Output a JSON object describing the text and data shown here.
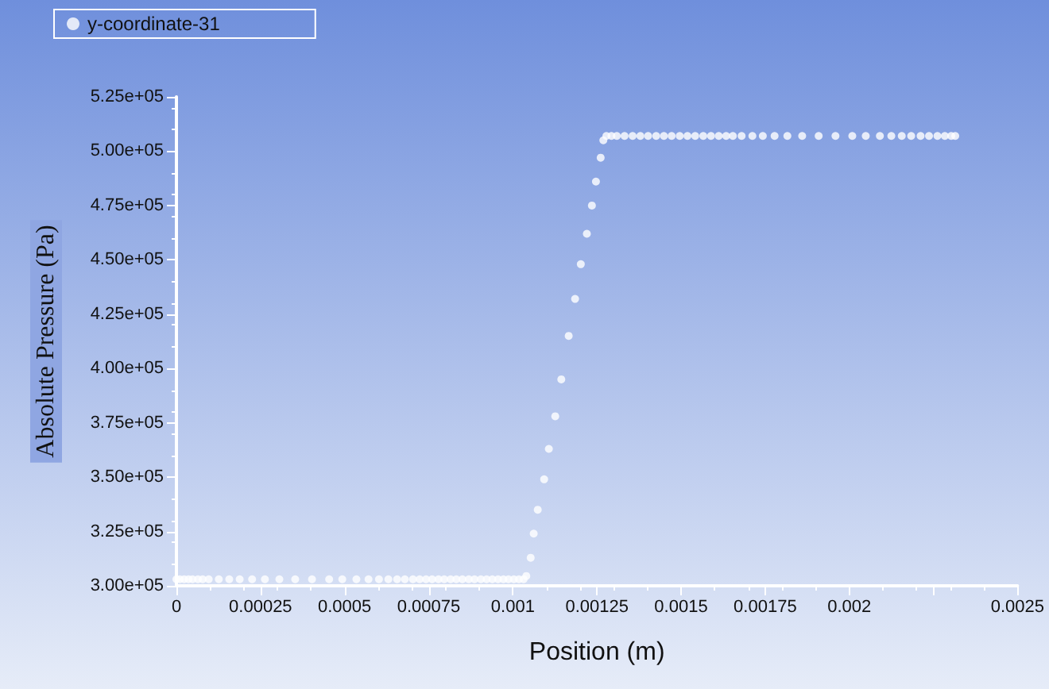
{
  "chart_data": {
    "type": "scatter",
    "xlabel": "Position (m)",
    "ylabel": "Absolute Pressure (Pa)",
    "xlim": [
      0,
      0.0025
    ],
    "xticks": [
      0,
      0.00025,
      0.0005,
      0.00075,
      0.001,
      0.00125,
      0.0015,
      0.00175,
      0.002,
      {
        "value": 0.00225,
        "label": null
      },
      0.0025
    ],
    "ylim": [
      300000,
      525000
    ],
    "yticks": [
      {
        "value": 300000,
        "label": "3.00e+05"
      },
      {
        "value": 325000,
        "label": "3.25e+05"
      },
      {
        "value": 350000,
        "label": "3.50e+05"
      },
      {
        "value": 375000,
        "label": "3.75e+05"
      },
      {
        "value": 400000,
        "label": "4.00e+05"
      },
      {
        "value": 425000,
        "label": "4.25e+05"
      },
      {
        "value": 450000,
        "label": "4.50e+05"
      },
      {
        "value": 475000,
        "label": "4.75e+05"
      },
      {
        "value": 500000,
        "label": "5.00e+05"
      },
      {
        "value": 525000,
        "label": "5.25e+05"
      }
    ],
    "grid": false,
    "legend": "top left",
    "marker": "circle",
    "series": [
      {
        "name": "y-coordinate-31",
        "color": "#ffffff",
        "x": [
          0,
          1e-05,
          2.3e-05,
          3.6e-05,
          4.8e-05,
          6.4e-05,
          7.8e-05,
          9.6e-05,
          0.000126,
          0.000157,
          0.000188,
          0.000225,
          0.000263,
          0.000306,
          0.000353,
          0.000403,
          0.000454,
          0.000493,
          0.000535,
          0.000571,
          0.000602,
          0.00063,
          0.000656,
          0.000679,
          0.000703,
          0.000723,
          0.000742,
          0.00076,
          0.000779,
          0.000796,
          0.000815,
          0.000832,
          0.00085,
          0.000869,
          0.000886,
          0.000905,
          0.000922,
          0.000939,
          0.000956,
          0.000972,
          0.000987,
          0.001003,
          0.001018,
          0.001032,
          0.00104,
          0.001053,
          0.001062,
          0.001074,
          0.001093,
          0.001107,
          0.001126,
          0.001144,
          0.001166,
          0.001185,
          0.001202,
          0.00122,
          0.001235,
          0.001247,
          0.001261,
          0.001269,
          0.001278,
          0.001293,
          0.001309,
          0.001332,
          0.001356,
          0.001379,
          0.001402,
          0.001426,
          0.001449,
          0.001472,
          0.001496,
          0.001519,
          0.001542,
          0.001566,
          0.001589,
          0.001612,
          0.001634,
          0.001654,
          0.00168,
          0.001712,
          0.001743,
          0.001778,
          0.001816,
          0.00186,
          0.001909,
          0.001959,
          0.002009,
          0.002049,
          0.002091,
          0.002125,
          0.002156,
          0.002184,
          0.002212,
          0.002237,
          0.002262,
          0.002284,
          0.002303,
          0.002315
        ],
        "values": [
          303000,
          303000,
          303000,
          303000,
          303000,
          303000,
          303000,
          303000,
          303000,
          303000,
          303000,
          303000,
          303000,
          303000,
          303000,
          303000,
          303000,
          303000,
          303000,
          303000,
          303000,
          303000,
          303000,
          303000,
          303000,
          303000,
          303000,
          303000,
          303000,
          303000,
          303000,
          303000,
          303000,
          303000,
          303000,
          303000,
          303000,
          303000,
          303000,
          303000,
          303000,
          303000,
          303000,
          303000,
          304500,
          312900,
          324000,
          335000,
          349000,
          363000,
          378000,
          395000,
          415000,
          432000,
          448000,
          462000,
          475000,
          486000,
          497000,
          505000,
          507000,
          507000,
          507000,
          507000,
          507000,
          507000,
          507000,
          507000,
          507000,
          507000,
          507000,
          507000,
          507000,
          507000,
          507000,
          507000,
          507000,
          507000,
          507000,
          507000,
          507000,
          507000,
          507000,
          507000,
          507000,
          507000,
          507000,
          507000,
          507000,
          507000,
          507000,
          507000,
          507000,
          507000,
          507000,
          507000,
          507000,
          507000
        ]
      }
    ]
  }
}
